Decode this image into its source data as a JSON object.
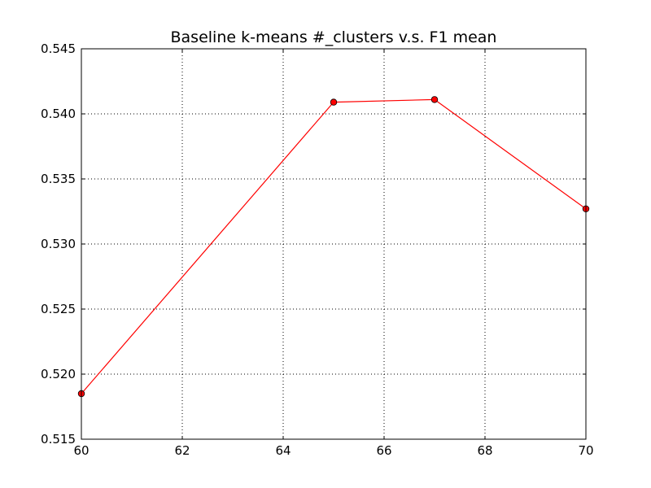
{
  "chart_data": {
    "type": "line",
    "title": "Baseline k-means #_clusters v.s. F1 mean",
    "xlabel": "",
    "ylabel": "",
    "xlim": [
      60,
      70
    ],
    "ylim": [
      0.515,
      0.545
    ],
    "x_ticks": [
      60,
      62,
      64,
      66,
      68,
      70
    ],
    "x_tick_labels": [
      "60",
      "62",
      "64",
      "66",
      "68",
      "70"
    ],
    "y_ticks": [
      0.515,
      0.52,
      0.525,
      0.53,
      0.535,
      0.54,
      0.545
    ],
    "y_tick_labels": [
      "0.515",
      "0.520",
      "0.525",
      "0.530",
      "0.535",
      "0.540",
      "0.545"
    ],
    "grid": true,
    "legend": "none",
    "series": [
      {
        "color": "#ff0000",
        "marker": "circle",
        "x": [
          60,
          65,
          67,
          70
        ],
        "y": [
          0.5185,
          0.5409,
          0.5411,
          0.5327
        ]
      }
    ]
  }
}
